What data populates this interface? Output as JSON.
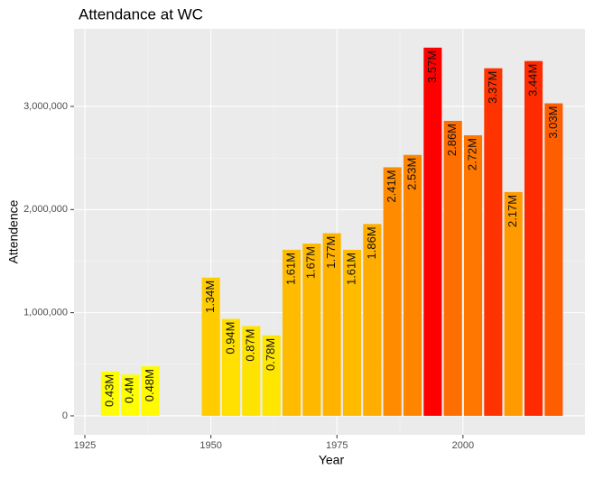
{
  "chart_data": {
    "type": "bar",
    "title": "Attendance at WC",
    "x_label": "Year",
    "y_label": "Attendence",
    "x": [
      1930,
      1934,
      1938,
      1950,
      1954,
      1958,
      1962,
      1966,
      1970,
      1974,
      1978,
      1982,
      1986,
      1990,
      1994,
      1998,
      2002,
      2006,
      2010,
      2014,
      2018
    ],
    "values": [
      430000,
      400000,
      480000,
      1340000,
      940000,
      870000,
      780000,
      1610000,
      1670000,
      1770000,
      1610000,
      1860000,
      2410000,
      2530000,
      3570000,
      2860000,
      2720000,
      3370000,
      2170000,
      3440000,
      3030000
    ],
    "value_labels": [
      "0.43M",
      "0.4M",
      "0.48M",
      "1.34M",
      "0.94M",
      "0.87M",
      "0.78M",
      "1.61M",
      "1.67M",
      "1.77M",
      "1.61M",
      "1.86M",
      "2.41M",
      "2.53M",
      "3.57M",
      "2.86M",
      "2.72M",
      "3.37M",
      "2.17M",
      "3.44M",
      "3.03M"
    ],
    "colors": [
      "#FFFE00",
      "#FFFF00",
      "#FFFA00",
      "#FFCC00",
      "#FFE000",
      "#FFE300",
      "#FFE600",
      "#FFBB00",
      "#FFB800",
      "#FFB300",
      "#FFBB00",
      "#FFAD00",
      "#FF8C00",
      "#FF8400",
      "#FF0000",
      "#FF6E00",
      "#FF7700",
      "#FF3300",
      "#FF9A00",
      "#FF2A00",
      "#FF5E00"
    ],
    "xlim": [
      1922.85,
      2024.2
    ],
    "xticks": [
      1925,
      1950,
      1975,
      2000
    ],
    "ylim": [
      -184000,
      3752000
    ],
    "yticks": [
      0,
      {
        "value": 1000000,
        "label": "1,000,000"
      },
      {
        "value": 2000000,
        "label": "2,000,000"
      },
      {
        "value": 3000000,
        "label": "3,000,000"
      }
    ],
    "grid": true
  }
}
